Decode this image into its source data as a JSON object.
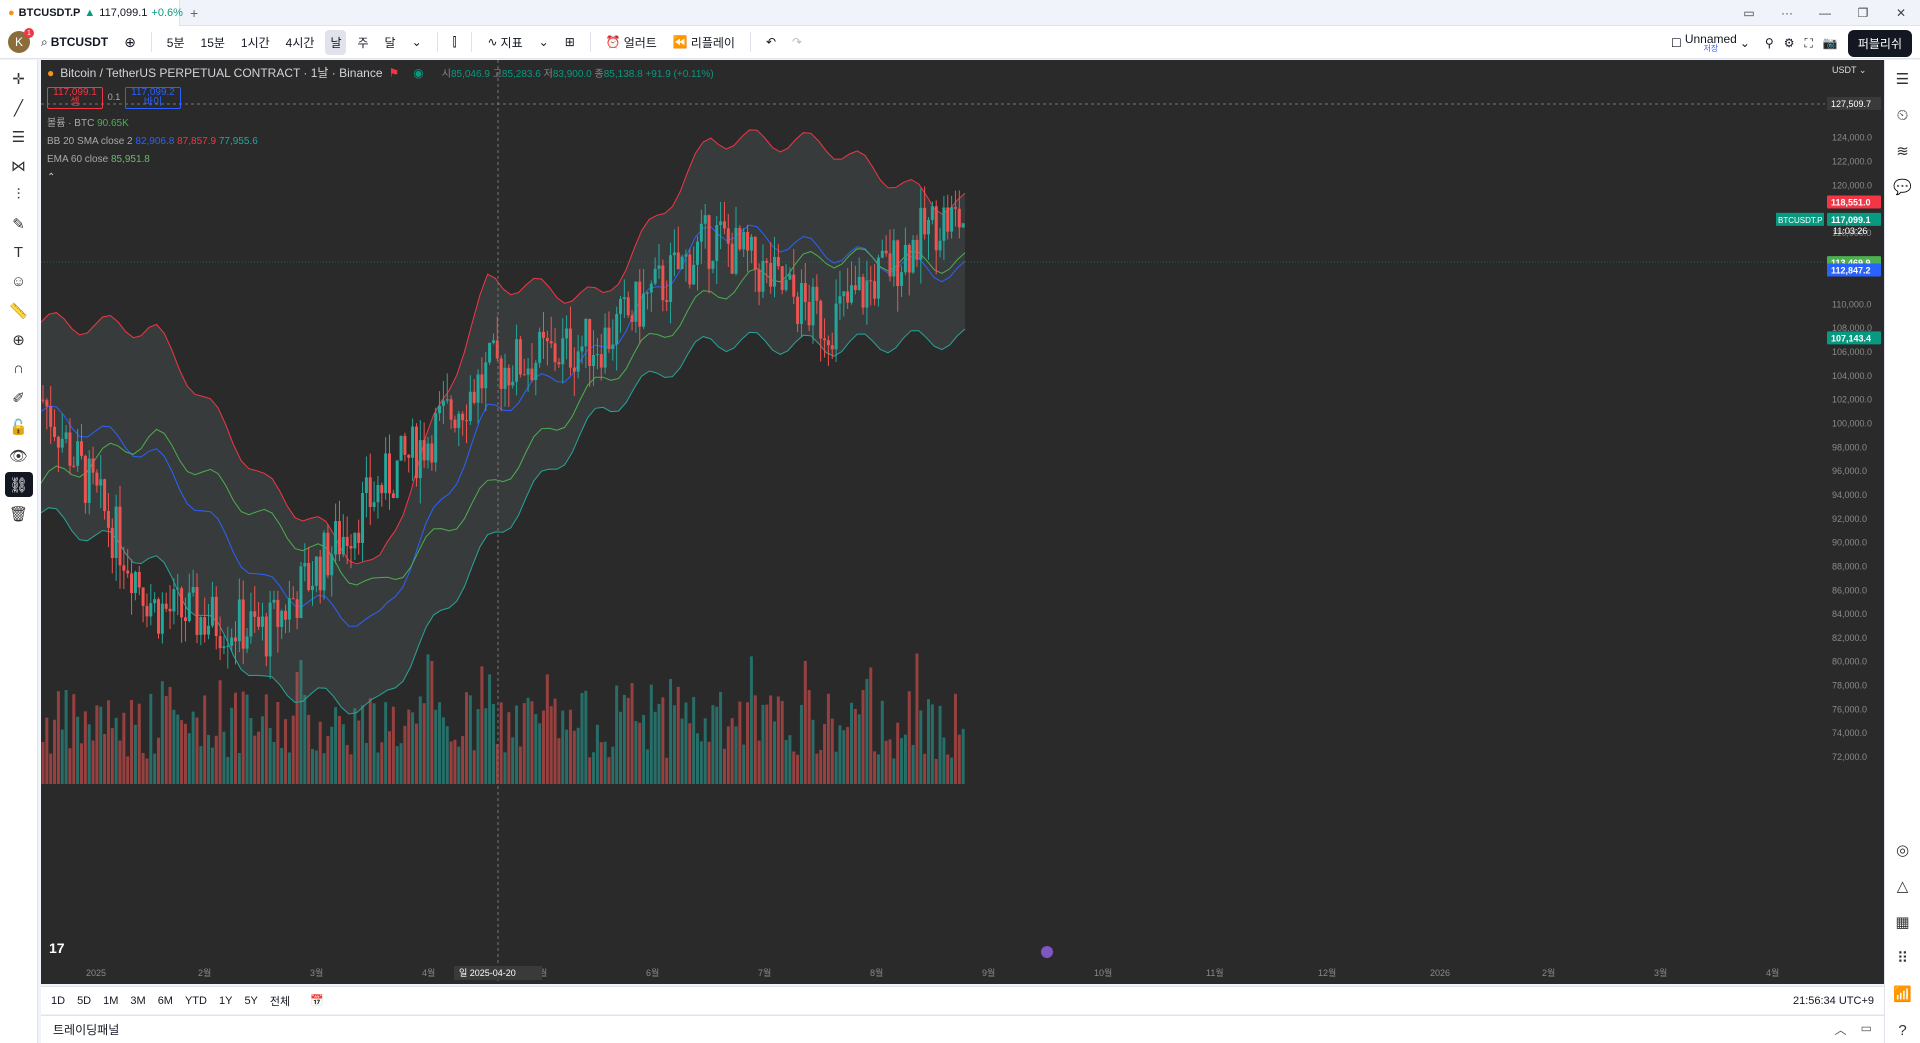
{
  "tab": {
    "symbol": "BTCUSDT.P",
    "arrow": "▲",
    "price": "117,099.1",
    "change": "+0.6%",
    "new_tab": "+"
  },
  "avatar": {
    "letter": "K",
    "badge": "1"
  },
  "toolbar": {
    "symbol": "BTCUSDT",
    "intervals": [
      "5분",
      "15분",
      "1시간",
      "4시간",
      "날",
      "주",
      "달"
    ],
    "active_interval": "날",
    "indicators_label": "지표",
    "alert_label": "얼러트",
    "replay_label": "리플레이",
    "layout_name": "Unnamed",
    "layout_sub": "저장",
    "publish_label": "퍼블리쉬"
  },
  "legend": {
    "title": "Bitcoin / TetherUS PERPETUAL CONTRACT · 1날 · Binance",
    "o_label": "시",
    "o": "85,046.9",
    "h_label": "고",
    "h": "85,283.6",
    "l_label": "저",
    "l": "83,900.0",
    "c_label": "종",
    "c": "85,138.8",
    "chg": "+91.9 (+0.11%)",
    "sell_price": "117,099.1",
    "sell_label": "셀",
    "spread": "0.1",
    "buy_price": "117,099.2",
    "buy_label": "바이",
    "volume_label": "볼륨 · BTC",
    "volume_val": "90.65K",
    "bb_label": "BB 20 SMA close 2",
    "bb_basis": "82,906.8",
    "bb_upper": "87,857.9",
    "bb_lower": "77,955.6",
    "ema_label": "EMA 60 close",
    "ema_val": "85,951.8"
  },
  "price_axis": {
    "currency": "USDT",
    "crosshair_price": "127,509.7",
    "ticks": [
      "124,000.0",
      "122,000.0",
      "120,000.0",
      "116,000.0",
      "110,000.0",
      "108,000.0",
      "106,000.0",
      "104,000.0",
      "102,000.0",
      "100,000.0",
      "98,000.0",
      "96,000.0",
      "94,000.0",
      "92,000.0",
      "90,000.0",
      "88,000.0",
      "86,000.0",
      "84,000.0",
      "82,000.0",
      "80,000.0",
      "78,000.0",
      "76,000.0",
      "74,000.0",
      "72,000.0"
    ],
    "labels": {
      "bb_upper": "118,551.0",
      "symbol": "BTCUSDT.P",
      "last": "117,099.1",
      "countdown": "11:03:26",
      "ema": "113,469.9",
      "bb_basis": "112,847.2",
      "bb_lower": "107,143.4"
    }
  },
  "time_axis": {
    "labels": [
      "2025",
      "2월",
      "3월",
      "4월",
      "5월",
      "6월",
      "7월",
      "8월",
      "9월",
      "10월",
      "11월",
      "12월",
      "2026",
      "2월",
      "3월",
      "4월"
    ],
    "crosshair_date": "일 2025-04-20"
  },
  "bottom": {
    "ranges": [
      "1D",
      "5D",
      "1M",
      "3M",
      "6M",
      "YTD",
      "1Y",
      "5Y",
      "전체"
    ],
    "clock": "21:56:34 UTC+9",
    "panel_label": "트레이딩패널"
  },
  "colors": {
    "up": "#26a69a",
    "down": "#ef5350",
    "bb": "#f23645",
    "basis": "#2962ff",
    "ema": "#4caf50"
  },
  "chart_data": {
    "type": "candlestick",
    "title": "Bitcoin / TetherUS PERPETUAL CONTRACT · 1날 · Binance",
    "ylim": [
      70000,
      128000
    ],
    "x_range": [
      "2025-01",
      "2026-04"
    ],
    "series": [
      {
        "name": "BB 20 SMA close 2 upper",
        "x": [
          "2025-01",
          "2025-02",
          "2025-03",
          "2025-04",
          "2025-05",
          "2025-06",
          "2025-07",
          "2025-08",
          "2025-09"
        ],
        "y": [
          108500,
          108000,
          95000,
          87500,
          112000,
          110500,
          124000,
          123500,
          118500
        ]
      },
      {
        "name": "BB 20 SMA close 2 basis",
        "x": [
          "2025-01",
          "2025-02",
          "2025-03",
          "2025-04",
          "2025-05",
          "2025-06",
          "2025-07",
          "2025-08",
          "2025-09"
        ],
        "y": [
          101000,
          97500,
          86500,
          83000,
          101000,
          106000,
          116500,
          114500,
          112800
        ]
      },
      {
        "name": "BB 20 SMA close 2 lower",
        "x": [
          "2025-01",
          "2025-02",
          "2025-03",
          "2025-04",
          "2025-05",
          "2025-06",
          "2025-07",
          "2025-08",
          "2025-09"
        ],
        "y": [
          92500,
          88500,
          78000,
          76000,
          90000,
          101000,
          107000,
          106500,
          107100
        ]
      },
      {
        "name": "EMA 60 close",
        "x": [
          "2025-01",
          "2025-02",
          "2025-03",
          "2025-04",
          "2025-05",
          "2025-06",
          "2025-07",
          "2025-08",
          "2025-09"
        ],
        "y": [
          95000,
          99000,
          92000,
          86000,
          94500,
          103500,
          111000,
          114000,
          113500
        ]
      },
      {
        "name": "close",
        "x": [
          "2025-01",
          "2025-02",
          "2025-03",
          "2025-04",
          "2025-05",
          "2025-06",
          "2025-07",
          "2025-08",
          "2025-09"
        ],
        "y": [
          102000,
          84500,
          82500,
          94500,
          104500,
          107000,
          115800,
          108300,
          117099
        ]
      }
    ]
  }
}
